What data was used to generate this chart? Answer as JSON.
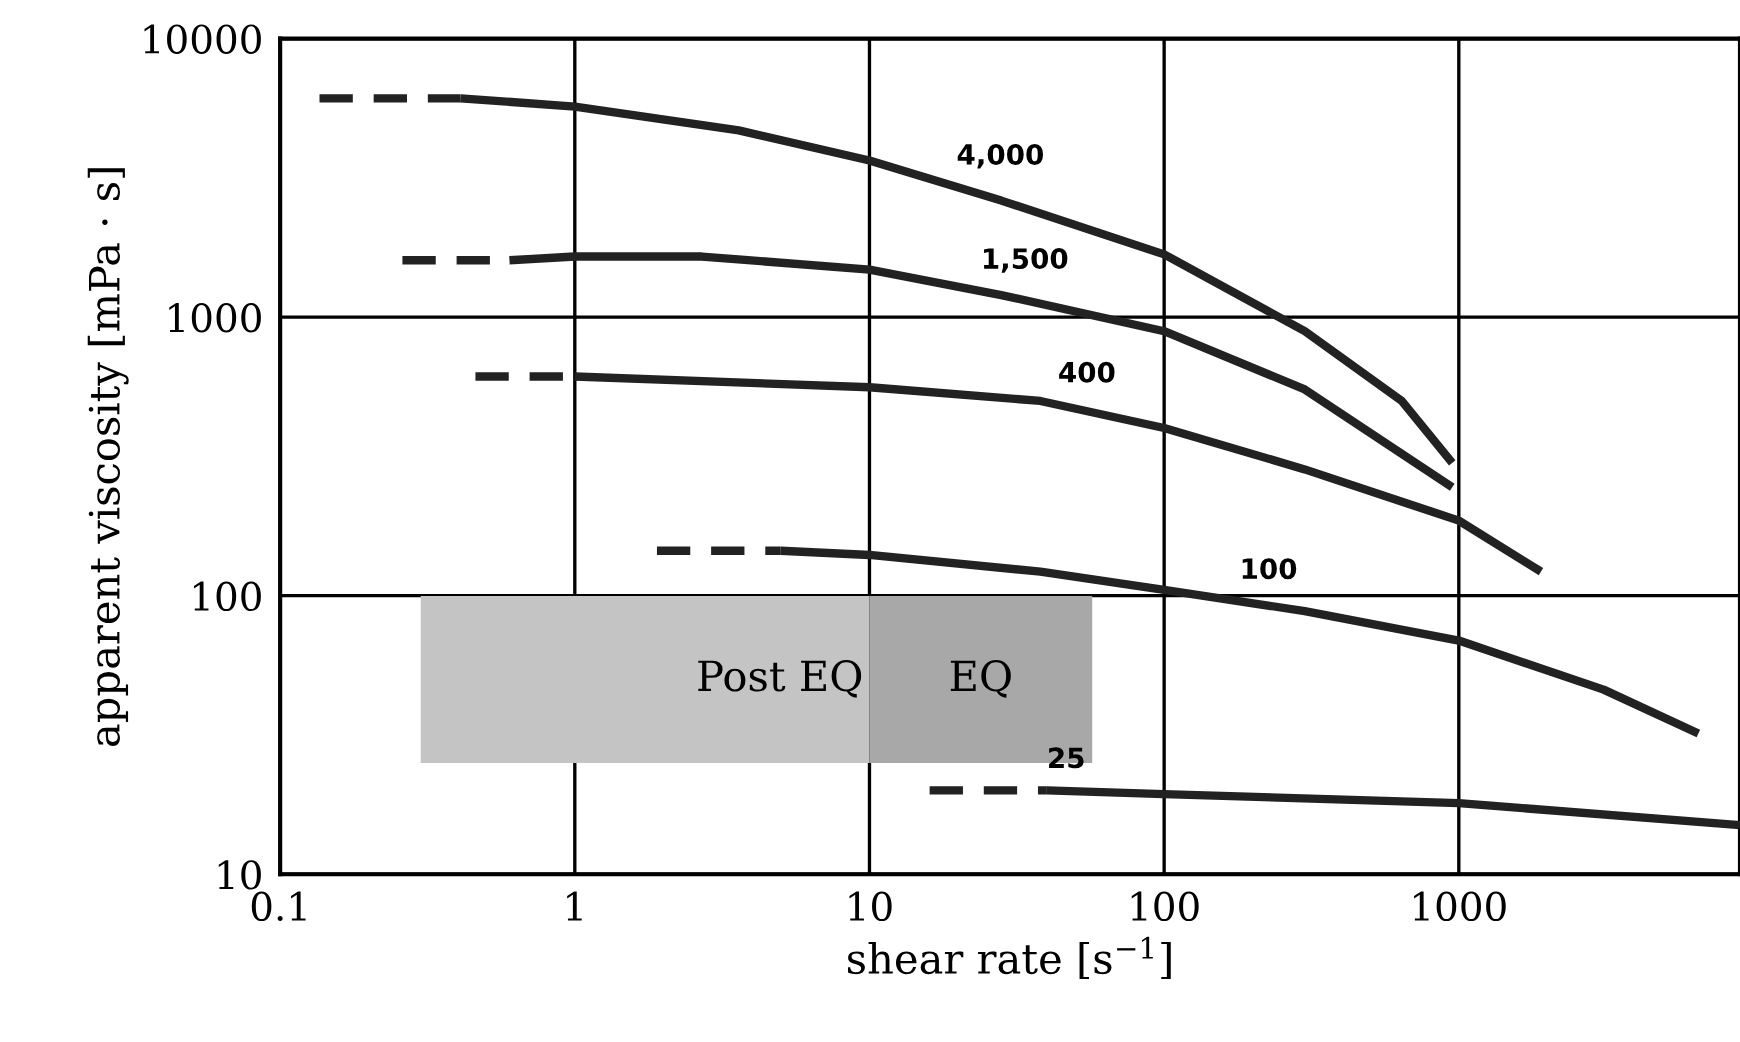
{
  "chart_data": {
    "type": "line",
    "xlabel": "shear rate [s$^{−1}$]",
    "ylabel": "apparent viscosity [mPa · s]",
    "log": "xy",
    "grid": true,
    "legend": false,
    "marker": "none",
    "xlim": [
      0.1,
      9000
    ],
    "xticks": [
      0.1,
      1,
      10,
      100,
      1000
    ],
    "ylim": [
      10,
      10000
    ],
    "yticks": [
      10,
      100,
      1000,
      10000
    ],
    "series": [
      {
        "color": "#222222",
        "line_style": "dashed",
        "x": [
          0.136,
          0.41
        ],
        "values": [
          6100,
          6100
        ]
      },
      {
        "name": "4,000",
        "color": "#222222",
        "line_style": "solid",
        "x": [
          0.41,
          1,
          3.6,
          10,
          28,
          100,
          300,
          640,
          950
        ],
        "values": [
          6100,
          5700,
          4680,
          3650,
          2620,
          1680,
          890,
          500,
          300
        ]
      },
      {
        "color": "#222222",
        "line_style": "dashed",
        "x": [
          0.26,
          0.6
        ],
        "values": [
          1600,
          1600
        ]
      },
      {
        "name": "1,500",
        "color": "#222222",
        "line_style": "solid",
        "x": [
          0.6,
          1,
          2.7,
          10,
          28,
          100,
          300,
          950
        ],
        "values": [
          1600,
          1650,
          1650,
          1480,
          1200,
          890,
          550,
          245
        ]
      },
      {
        "color": "#222222",
        "line_style": "dashed",
        "x": [
          0.46,
          1
        ],
        "values": [
          612,
          612
        ]
      },
      {
        "name": "400",
        "color": "#222222",
        "line_style": "solid",
        "x": [
          1,
          10,
          38,
          100,
          300,
          1000,
          1900
        ],
        "values": [
          612,
          560,
          500,
          400,
          284,
          186,
          122
        ]
      },
      {
        "color": "#222222",
        "line_style": "dashed",
        "x": [
          1.9,
          5
        ],
        "values": [
          145,
          145
        ]
      },
      {
        "name": "100",
        "color": "#222222",
        "line_style": "solid",
        "x": [
          5,
          10,
          38,
          100,
          300,
          1000,
          3100,
          6500
        ],
        "values": [
          145,
          140,
          122,
          105,
          88,
          69,
          46,
          32
        ]
      },
      {
        "color": "#222222",
        "line_style": "dashed",
        "x": [
          16,
          40
        ],
        "values": [
          20,
          20
        ]
      },
      {
        "name": "25",
        "color": "#222222",
        "line_style": "solid",
        "x": [
          40,
          100,
          1000,
          9000
        ],
        "values": [
          20,
          19.4,
          18,
          15
        ]
      }
    ],
    "bands": [
      {
        "axis": "x",
        "from": 0.3,
        "to": 10,
        "label": "Post EQ",
        "color": "#c4c4c4"
      },
      {
        "axis": "x",
        "from": 10,
        "to": 57,
        "label": "EQ",
        "color": "#a8a8a8"
      }
    ]
  }
}
